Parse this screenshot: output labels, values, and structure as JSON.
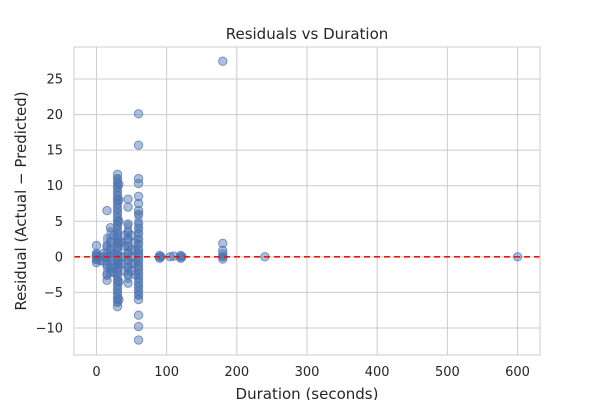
{
  "chart_data": {
    "type": "scatter",
    "title": "Residuals vs Duration",
    "xlabel": "Duration (seconds)",
    "ylabel": "Residual (Actual − Predicted)",
    "xlim": [
      -32,
      632
    ],
    "ylim": [
      -13.8,
      29.5
    ],
    "xticks": [
      0,
      100,
      200,
      300,
      400,
      500,
      600
    ],
    "yticks": [
      -10,
      -5,
      0,
      5,
      10,
      15,
      20,
      25
    ],
    "grid": true,
    "legend": "none",
    "reference_line": {
      "y": 0,
      "style": "dashed",
      "color": "#e8160c"
    },
    "marker_color": "#4c72b0",
    "series": [
      {
        "points": [
          [
            0,
            1.6
          ],
          [
            0,
            0.5
          ],
          [
            0,
            0
          ],
          [
            0,
            -0.4
          ],
          [
            0,
            -0.8
          ],
          [
            0,
            0.2
          ],
          [
            5,
            0
          ],
          [
            5,
            -0.5
          ],
          [
            10,
            0
          ],
          [
            10,
            0.5
          ],
          [
            10,
            -0.6
          ],
          [
            15,
            0
          ],
          [
            15,
            1.5
          ],
          [
            15,
            -1.2
          ],
          [
            15,
            -2.5
          ],
          [
            15,
            6.5
          ],
          [
            15,
            -3.3
          ],
          [
            20,
            0
          ],
          [
            20,
            2.1
          ],
          [
            20,
            -1.5
          ],
          [
            20,
            4.1
          ],
          [
            20,
            -2.2
          ],
          [
            20,
            1.0
          ],
          [
            25,
            0.5
          ],
          [
            25,
            -1.0
          ],
          [
            25,
            3.0
          ],
          [
            25,
            -2.2
          ],
          [
            30,
            11.6
          ],
          [
            30,
            11.0
          ],
          [
            30,
            10.4
          ],
          [
            30,
            9.8
          ],
          [
            30,
            9.2
          ],
          [
            30,
            8.6
          ],
          [
            30,
            8.0
          ],
          [
            30,
            7.4
          ],
          [
            30,
            6.8
          ],
          [
            30,
            6.2
          ],
          [
            30,
            5.6
          ],
          [
            30,
            5.0
          ],
          [
            30,
            4.4
          ],
          [
            30,
            3.8
          ],
          [
            30,
            3.2
          ],
          [
            30,
            2.6
          ],
          [
            30,
            2.0
          ],
          [
            30,
            1.4
          ],
          [
            30,
            0.8
          ],
          [
            30,
            0.2
          ],
          [
            30,
            -0.4
          ],
          [
            30,
            -1.0
          ],
          [
            30,
            -1.6
          ],
          [
            30,
            -2.2
          ],
          [
            30,
            -2.8
          ],
          [
            30,
            -3.4
          ],
          [
            30,
            -4.0
          ],
          [
            30,
            -4.6
          ],
          [
            30,
            -5.2
          ],
          [
            30,
            -5.8
          ],
          [
            30,
            -6.4
          ],
          [
            30,
            -7.0
          ],
          [
            32,
            10.2
          ],
          [
            32,
            8.0
          ],
          [
            32,
            5.0
          ],
          [
            32,
            2.0
          ],
          [
            32,
            -1.0
          ],
          [
            32,
            -3.5
          ],
          [
            32,
            -6.0
          ],
          [
            35,
            2.0
          ],
          [
            35,
            0
          ],
          [
            35,
            -1.0
          ],
          [
            40,
            1.5
          ],
          [
            40,
            0
          ],
          [
            40,
            -2.0
          ],
          [
            40,
            3.0
          ],
          [
            45,
            8.1
          ],
          [
            45,
            7.0
          ],
          [
            45,
            4.6
          ],
          [
            45,
            3.5
          ],
          [
            45,
            2.5
          ],
          [
            45,
            1.5
          ],
          [
            45,
            0.5
          ],
          [
            45,
            -0.5
          ],
          [
            45,
            -1.5
          ],
          [
            45,
            -2.5
          ],
          [
            45,
            -3.7
          ],
          [
            50,
            1.0
          ],
          [
            50,
            0
          ],
          [
            50,
            -1.0
          ],
          [
            50,
            -2.0
          ],
          [
            50,
            3.0
          ],
          [
            55,
            2.0
          ],
          [
            55,
            0.8
          ],
          [
            55,
            -0.8
          ],
          [
            55,
            -2.5
          ],
          [
            60,
            20.1
          ],
          [
            60,
            15.7
          ],
          [
            60,
            11.0
          ],
          [
            60,
            10.3
          ],
          [
            60,
            8.5
          ],
          [
            60,
            7.5
          ],
          [
            60,
            6.5
          ],
          [
            60,
            6.0
          ],
          [
            60,
            4.7
          ],
          [
            60,
            4.0
          ],
          [
            60,
            3.3
          ],
          [
            60,
            2.5
          ],
          [
            60,
            1.8
          ],
          [
            60,
            1.0
          ],
          [
            60,
            0.5
          ],
          [
            60,
            0
          ],
          [
            60,
            -0.6
          ],
          [
            60,
            -1.2
          ],
          [
            60,
            -1.8
          ],
          [
            60,
            -2.4
          ],
          [
            60,
            -3.0
          ],
          [
            60,
            -3.6
          ],
          [
            60,
            -4.2
          ],
          [
            60,
            -4.8
          ],
          [
            60,
            -5.4
          ],
          [
            60,
            -6.0
          ],
          [
            60,
            -8.2
          ],
          [
            60,
            -9.8
          ],
          [
            60,
            -11.7
          ],
          [
            90,
            0.2
          ],
          [
            90,
            0
          ],
          [
            90,
            -0.2
          ],
          [
            92,
            0
          ],
          [
            105,
            0
          ],
          [
            110,
            0.1
          ],
          [
            120,
            0.2
          ],
          [
            120,
            0
          ],
          [
            120,
            -0.2
          ],
          [
            122,
            0
          ],
          [
            180,
            27.5
          ],
          [
            180,
            1.9
          ],
          [
            180,
            0.9
          ],
          [
            180,
            0.4
          ],
          [
            180,
            0
          ],
          [
            180,
            -0.3
          ],
          [
            240,
            0
          ],
          [
            600,
            0
          ]
        ]
      }
    ]
  }
}
